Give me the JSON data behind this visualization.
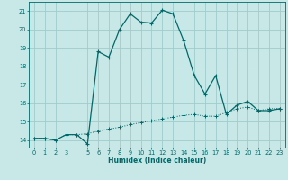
{
  "title": "",
  "xlabel": "Humidex (Indice chaleur)",
  "bg_color": "#c8e8e8",
  "grid_color": "#a0cccc",
  "line_color": "#006868",
  "xlim": [
    -0.5,
    23.5
  ],
  "ylim": [
    13.6,
    21.5
  ],
  "yticks": [
    14,
    15,
    16,
    17,
    18,
    19,
    20,
    21
  ],
  "xticks": [
    0,
    1,
    2,
    3,
    5,
    6,
    7,
    8,
    9,
    10,
    11,
    12,
    13,
    14,
    15,
    16,
    17,
    18,
    19,
    20,
    21,
    22,
    23
  ],
  "curve1_x": [
    0,
    1,
    2,
    3,
    4,
    5,
    6,
    7,
    8,
    9,
    10,
    11,
    12,
    13,
    14,
    15,
    16,
    17,
    18,
    19,
    20,
    21,
    22,
    23
  ],
  "curve1_y": [
    14.1,
    14.1,
    14.0,
    14.3,
    14.3,
    13.8,
    18.8,
    18.5,
    20.0,
    20.85,
    20.4,
    20.35,
    21.05,
    20.85,
    19.4,
    17.5,
    16.5,
    17.5,
    15.4,
    15.9,
    16.1,
    15.6,
    15.6,
    15.7
  ],
  "curve2_x": [
    0,
    1,
    2,
    3,
    4,
    5,
    6,
    7,
    8,
    9,
    10,
    11,
    12,
    13,
    14,
    15,
    16,
    17,
    18,
    19,
    20,
    21,
    22,
    23
  ],
  "curve2_y": [
    14.1,
    14.1,
    14.0,
    14.3,
    14.3,
    14.35,
    14.5,
    14.6,
    14.7,
    14.85,
    14.95,
    15.05,
    15.15,
    15.25,
    15.35,
    15.4,
    15.3,
    15.3,
    15.5,
    15.7,
    15.8,
    15.6,
    15.7,
    15.72
  ]
}
